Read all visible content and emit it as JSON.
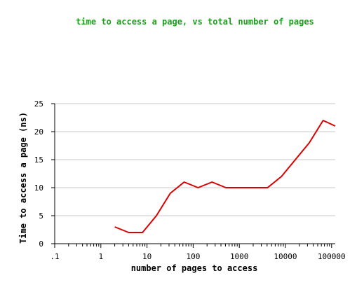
{
  "chart_data": {
    "type": "line",
    "title": "time to access a page, vs total number of pages",
    "xlabel": "number of pages to access",
    "ylabel": "Time to access a page (ns)",
    "x_scale": "log",
    "xlim": [
      0.1,
      120000
    ],
    "ylim": [
      0,
      25
    ],
    "y_ticks": [
      0,
      5,
      10,
      15,
      20,
      25
    ],
    "x_tick_labels": [
      ".1",
      "1",
      "10",
      "100",
      "1000",
      "10000",
      "100000"
    ],
    "x_tick_values": [
      0.1,
      1,
      10,
      100,
      1000,
      10000,
      100000
    ],
    "grid": "horizontal",
    "series": [
      {
        "color": "#dd0000",
        "x": [
          2,
          4,
          8,
          16,
          32,
          64,
          128,
          256,
          512,
          1024,
          2048,
          4096,
          8192,
          16384,
          32768,
          65536,
          131072
        ],
        "y": [
          3,
          2,
          2,
          5,
          9,
          11,
          10,
          11,
          10,
          10,
          10,
          10,
          12,
          15,
          18,
          22,
          21
        ]
      }
    ]
  }
}
